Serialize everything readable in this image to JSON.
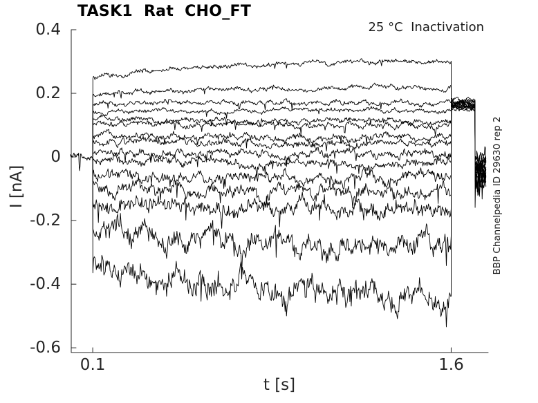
{
  "chart_data": {
    "type": "line",
    "title": "TASK1  Rat  CHO_FT",
    "annotation": "25 °C  Inactivation",
    "right_label": "BBP Channelpedia ID 29630 rep 2",
    "xlabel": "t [s]",
    "ylabel": "I [nA]",
    "xlim": [
      0.01,
      1.755
    ],
    "ylim": [
      -0.615,
      0.4
    ],
    "xticks": [
      0.1,
      1.6
    ],
    "xtick_labels": [
      "0.1",
      "1.6"
    ],
    "yticks": [
      0.4,
      0.2,
      0,
      -0.2,
      -0.4,
      -0.6
    ],
    "ytick_labels": [
      "0.4",
      "0.2",
      "0",
      "-0.2",
      "-0.4",
      "-0.6"
    ],
    "grid": false,
    "legend": false,
    "trace_color": "#000000",
    "axis_color": "#262626",
    "seed": 29630,
    "protocol": {
      "baseline": {
        "t0": 0.006,
        "t1": 0.0995,
        "value": 0,
        "noise": 0.005,
        "spike_value": -0.033
      },
      "step_on_t": 0.1,
      "step_off_t": 1.6,
      "tail": {
        "t0": 1.6,
        "t1": 1.6995,
        "base_value": 0.1495,
        "offset_per_sweep": 0.0022,
        "noise": 0.0045
      },
      "post": {
        "t0": 1.7002,
        "t1": 1.7455,
        "base_value": -0.012,
        "offset_per_sweep": -0.0046,
        "noise": 0.016,
        "last_sweep_spike": -0.165
      }
    },
    "sweeps": [
      {
        "start": 0.25,
        "end": 0.302,
        "noise": 0.0045,
        "tau": 0.45
      },
      {
        "start": 0.198,
        "end": 0.22,
        "noise": 0.0045,
        "tau": 0.6
      },
      {
        "start": 0.168,
        "end": 0.172,
        "noise": 0.0045,
        "tau": 0.5
      },
      {
        "start": 0.142,
        "end": 0.147,
        "noise": 0.004,
        "tau": 0.5
      },
      {
        "start": 0.12,
        "end": 0.113,
        "noise": 0.0055,
        "tau": 0.5
      },
      {
        "start": 0.105,
        "end": 0.099,
        "noise": 0.0055,
        "tau": 0.5
      },
      {
        "start": 0.068,
        "end": 0.061,
        "noise": 0.0065,
        "tau": 0.5
      },
      {
        "start": 0.047,
        "end": 0.042,
        "noise": 0.0065,
        "tau": 0.5
      },
      {
        "start": 0.013,
        "end": 0.007,
        "noise": 0.0075,
        "tau": 0.5
      },
      {
        "start": -0.01,
        "end": -0.018,
        "noise": 0.0085,
        "tau": 0.5
      },
      {
        "start": -0.052,
        "end": -0.066,
        "noise": 0.011,
        "tau": 0.5
      },
      {
        "start": -0.093,
        "end": -0.112,
        "noise": 0.013,
        "tau": 0.5
      },
      {
        "start": -0.138,
        "end": -0.168,
        "noise": 0.016,
        "tau": 0.5
      },
      {
        "start": -0.215,
        "end": -0.278,
        "noise": 0.021,
        "tau": 0.3
      },
      {
        "start": -0.33,
        "end": -0.455,
        "noise": 0.026,
        "tau": 0.55
      }
    ]
  }
}
